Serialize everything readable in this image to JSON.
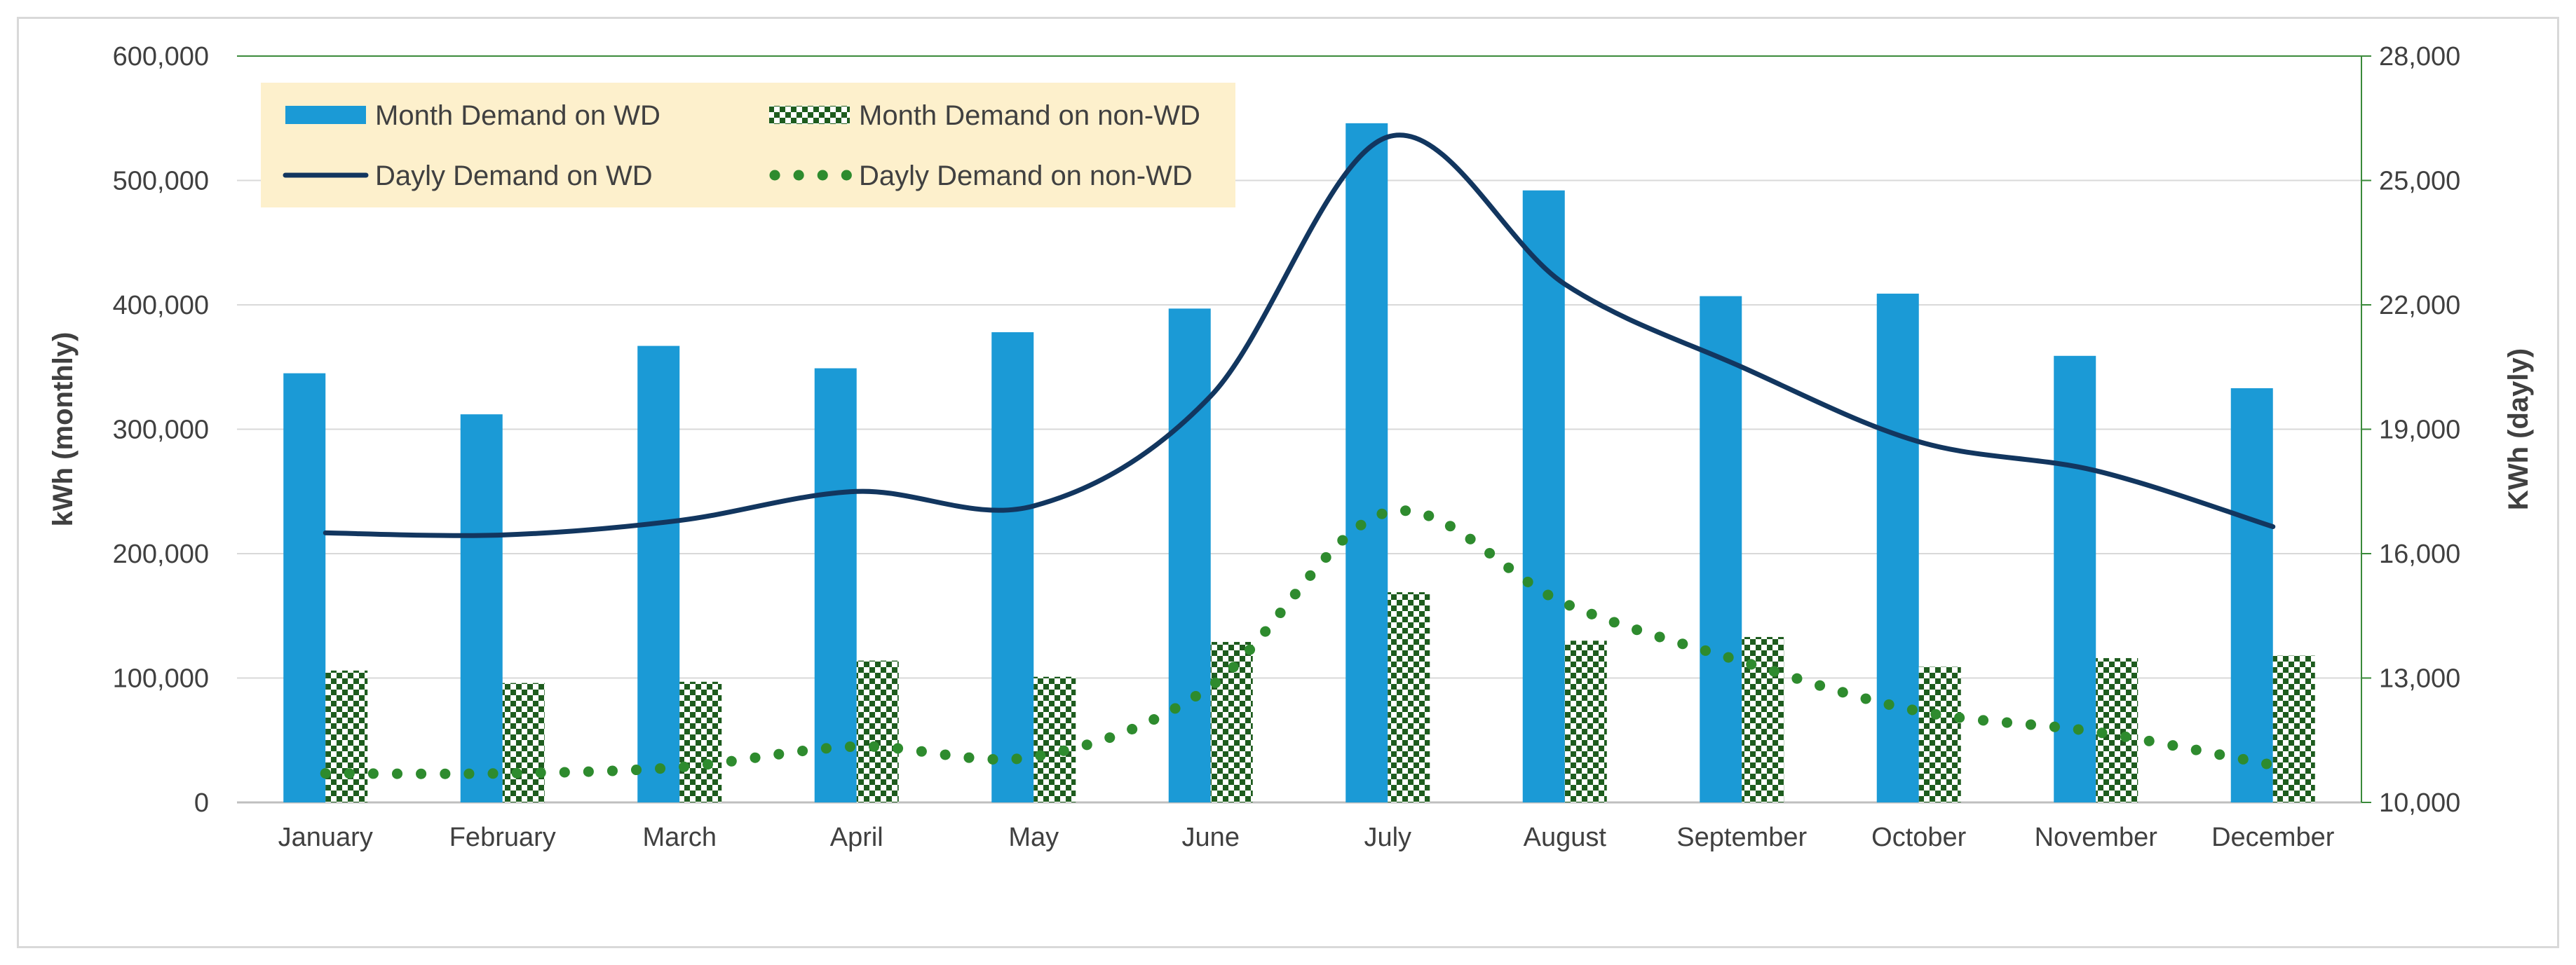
{
  "chart_data": {
    "type": "bar+line",
    "categories": [
      "January",
      "February",
      "March",
      "April",
      "May",
      "June",
      "July",
      "August",
      "September",
      "October",
      "November",
      "December"
    ],
    "bar_series": [
      {
        "name": "Month Demand on WD",
        "axis": "left",
        "color": "#1b9ad6",
        "pattern": "solid",
        "values": [
          345000,
          312000,
          367000,
          349000,
          378000,
          397000,
          546000,
          492000,
          407000,
          409000,
          359000,
          333000
        ]
      },
      {
        "name": "Month Demand on non-WD",
        "axis": "left",
        "color": "#1e5c1e",
        "pattern": "checker",
        "values": [
          106000,
          96000,
          97000,
          114000,
          101000,
          129000,
          169000,
          130000,
          133000,
          109000,
          116000,
          118000
        ]
      }
    ],
    "line_series": [
      {
        "name": "Dayly Demand on WD",
        "axis": "right",
        "color": "#12365f",
        "style": "solid",
        "values": [
          16500,
          16450,
          16800,
          17500,
          17150,
          19800,
          26050,
          22500,
          20500,
          18700,
          18000,
          16650
        ]
      },
      {
        "name": "Dayly Demand on non-WD",
        "axis": "right",
        "color": "#2e8b2e",
        "style": "dotted",
        "values": [
          10700,
          10700,
          10850,
          11350,
          11100,
          12800,
          17000,
          14800,
          13400,
          12200,
          11700,
          10900
        ]
      }
    ],
    "y_left": {
      "label": "kWh (monthly)",
      "min": 0,
      "max": 600000,
      "ticks": [
        "0",
        "100,000",
        "200,000",
        "300,000",
        "400,000",
        "500,000",
        "600,000"
      ]
    },
    "y_right": {
      "label": "KWh (dayly)",
      "min": 10000,
      "max": 28000,
      "ticks": [
        "10,000",
        "13,000",
        "16,000",
        "19,000",
        "22,000",
        "25,000",
        "28,000"
      ]
    },
    "legend": {
      "placement": "top-left",
      "background": "#fdf0cc"
    },
    "grid": true
  }
}
